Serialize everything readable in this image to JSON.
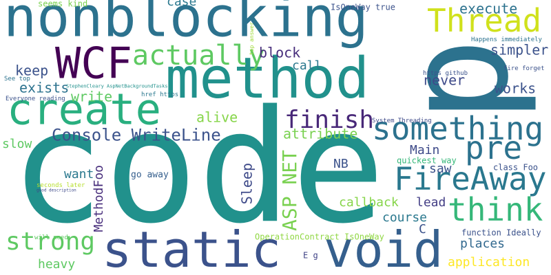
{
  "words": [
    {
      "text": "code",
      "color": "#21918c"
    },
    {
      "text": "p",
      "color": "#2c728e"
    },
    {
      "text": "nonblocking",
      "color": "#2c728e"
    },
    {
      "text": "method",
      "color": "#21918c"
    },
    {
      "text": "void",
      "color": "#355f8d"
    },
    {
      "text": "static",
      "color": "#3b528b"
    },
    {
      "text": "WCF",
      "color": "#440154"
    },
    {
      "text": "create",
      "color": "#29af7f"
    },
    {
      "text": "something",
      "color": "#2c728e"
    },
    {
      "text": "FireAway",
      "color": "#2a788e"
    },
    {
      "text": "think",
      "color": "#35b779"
    },
    {
      "text": "Thread",
      "color": "#d0e11c"
    },
    {
      "text": "pre",
      "color": "#2c728e"
    },
    {
      "text": "actually",
      "color": "#5ec962"
    },
    {
      "text": "strong",
      "color": "#5ec962"
    },
    {
      "text": "finish",
      "color": "#482878"
    },
    {
      "text": "Console WriteLine",
      "color": "#3b528b"
    },
    {
      "text": "ASP NET",
      "color": "#7ad151"
    },
    {
      "text": "Sleep",
      "color": "#3e4a89"
    },
    {
      "text": "MethodFoo",
      "color": "#472d7b"
    },
    {
      "text": "execute",
      "color": "#2c728e"
    },
    {
      "text": "simpler",
      "color": "#3b528b"
    },
    {
      "text": "works",
      "color": "#3b528b"
    },
    {
      "text": "never",
      "color": "#3e4a89"
    },
    {
      "text": "block",
      "color": "#472d7b"
    },
    {
      "text": "call",
      "color": "#2a788e"
    },
    {
      "text": "keep",
      "color": "#3b528b"
    },
    {
      "text": "exists",
      "color": "#2c728e"
    },
    {
      "text": "write",
      "color": "#5ec962"
    },
    {
      "text": "alive",
      "color": "#86d549"
    },
    {
      "text": "attribute",
      "color": "#7ad151"
    },
    {
      "text": "slow",
      "color": "#5ec962"
    },
    {
      "text": "Main",
      "color": "#3e4a89"
    },
    {
      "text": "want",
      "color": "#2a788e"
    },
    {
      "text": "NB",
      "color": "#3b528b"
    },
    {
      "text": "saw",
      "color": "#3b528b"
    },
    {
      "text": "callback",
      "color": "#86d549"
    },
    {
      "text": "lead",
      "color": "#433e85"
    },
    {
      "text": "course",
      "color": "#2a788e"
    },
    {
      "text": "C",
      "color": "#3b528b"
    },
    {
      "text": "places",
      "color": "#31688e"
    },
    {
      "text": "application",
      "color": "#fde725"
    },
    {
      "text": "heavy",
      "color": "#5ec962"
    },
    {
      "text": "case",
      "color": "#2a788e"
    },
    {
      "text": "go away",
      "color": "#355f8d"
    },
    {
      "text": "quickest way",
      "color": "#35b779"
    },
    {
      "text": "class Foo",
      "color": "#3b528b"
    },
    {
      "text": "OperationContract IsOneWay",
      "color": "#90d743"
    },
    {
      "text": "function Ideally",
      "color": "#3b528b"
    },
    {
      "text": "E g",
      "color": "#414487"
    },
    {
      "text": "IsOneWay true",
      "color": "#3b528b"
    },
    {
      "text": "seems kind",
      "color": "#7ad151"
    },
    {
      "text": "Happens immediately",
      "color": "#2c728e"
    },
    {
      "text": "fire forget",
      "color": "#3b528b"
    },
    {
      "text": "https github",
      "color": "#3b528b"
    },
    {
      "text": "System Threading",
      "color": "#3e4a89"
    },
    {
      "text": "See top",
      "color": "#2c728e"
    },
    {
      "text": "StephenCleary AspNetBackgroundTasks",
      "color": "#21918c"
    },
    {
      "text": "href https",
      "color": "#2a788e"
    },
    {
      "text": "Everyone reading",
      "color": "#3b528b"
    },
    {
      "text": "top answer",
      "color": "#a0da39"
    },
    {
      "text": "seconds later",
      "color": "#b5de2b"
    },
    {
      "text": "good description",
      "color": "#3e4a89"
    },
    {
      "text": "will need",
      "color": "#5ec962"
    }
  ]
}
